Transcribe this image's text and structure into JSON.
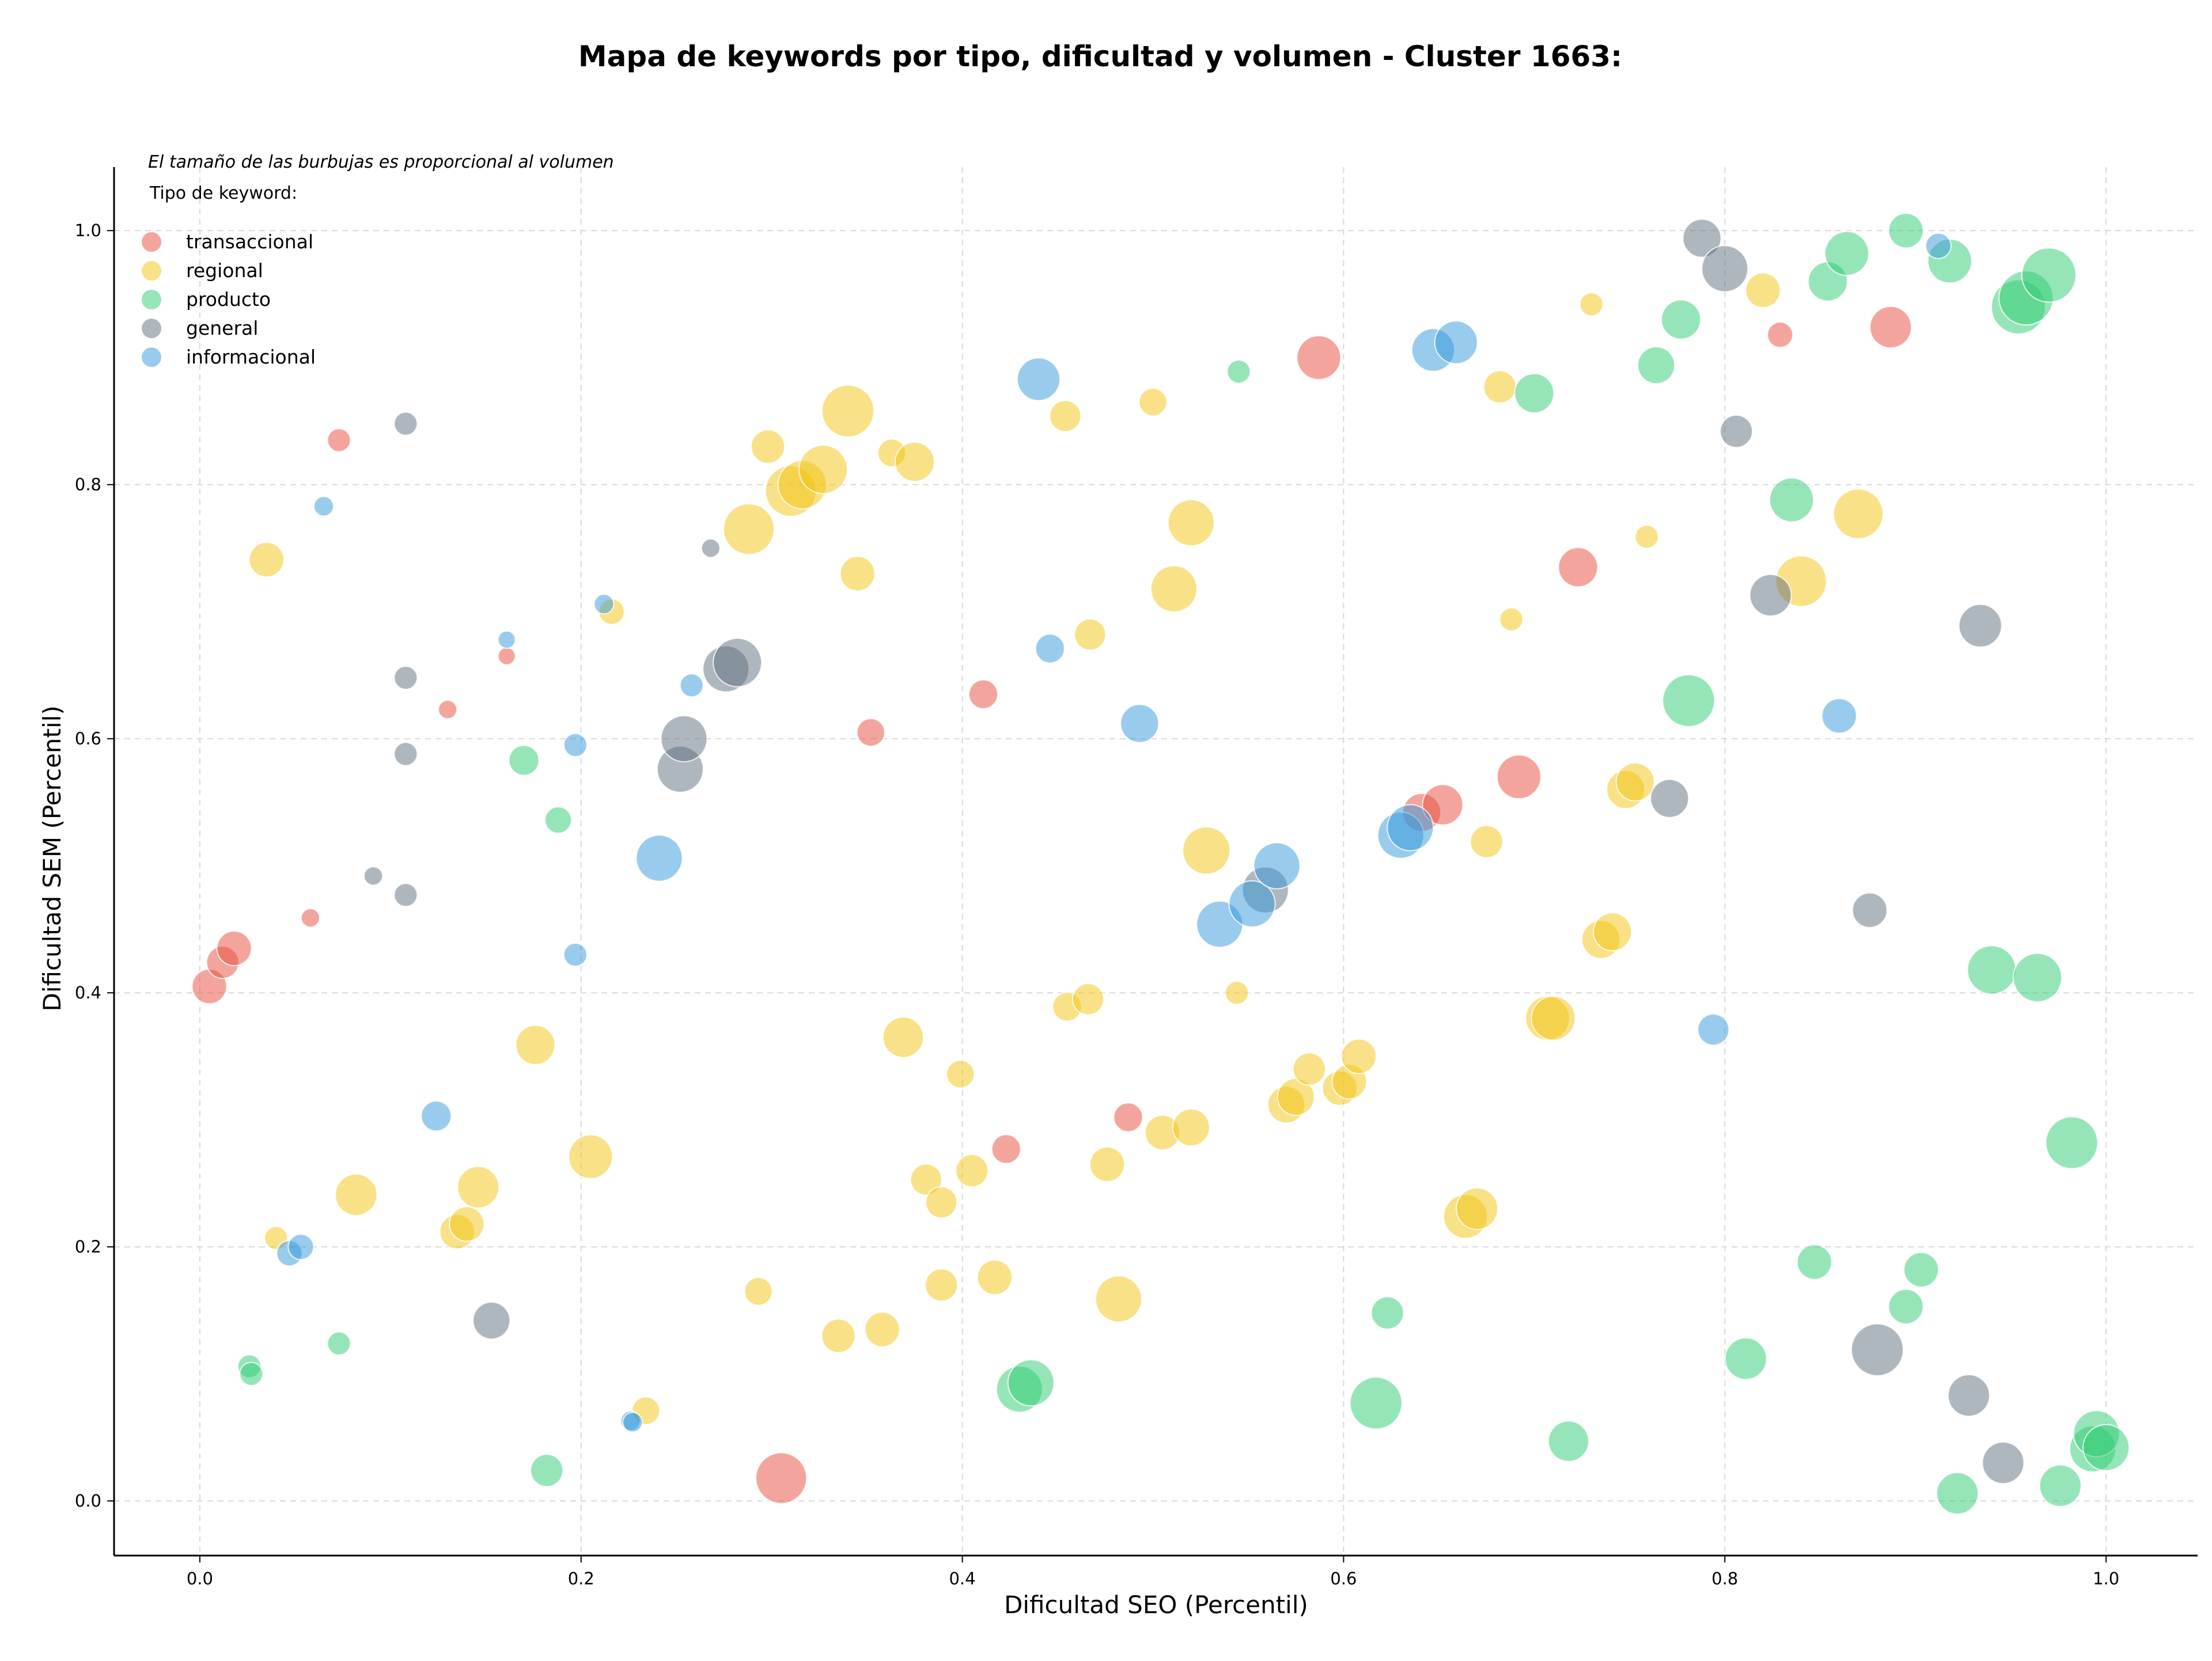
{
  "chart_data": {
    "type": "scatter",
    "title": "Mapa de keywords por tipo, dificultad y volumen - Cluster 1663:",
    "xlabel": "Dificultad SEO (Percentil)",
    "ylabel": "Dificultad SEM (Percentil)",
    "xlim": [
      -0.045,
      1.048
    ],
    "ylim": [
      -0.043,
      1.05
    ],
    "xticks": [
      "0.0",
      "0.2",
      "0.4",
      "0.6",
      "0.8",
      "1.0"
    ],
    "yticks": [
      "0.0",
      "0.2",
      "0.4",
      "0.6",
      "0.8",
      "1.0"
    ],
    "grid": true,
    "note": "El tamaño de las burbujas es proporcional al volumen",
    "legend_title": "Tipo de keyword:",
    "legend_position": "top-left",
    "series": [
      {
        "name": "transaccional",
        "color": "#e74c3c",
        "points": [
          [
            0.005,
            0.405,
            30
          ],
          [
            0.012,
            0.424,
            28
          ],
          [
            0.018,
            0.435,
            30
          ],
          [
            0.058,
            0.459,
            16
          ],
          [
            0.073,
            0.835,
            20
          ],
          [
            0.13,
            0.623,
            16
          ],
          [
            0.161,
            0.665,
            15
          ],
          [
            0.305,
            0.018,
            44
          ],
          [
            0.352,
            0.605,
            24
          ],
          [
            0.411,
            0.635,
            25
          ],
          [
            0.423,
            0.277,
            25
          ],
          [
            0.487,
            0.302,
            25
          ],
          [
            0.587,
            0.9,
            38
          ],
          [
            0.641,
            0.542,
            33
          ],
          [
            0.652,
            0.548,
            35
          ],
          [
            0.692,
            0.57,
            38
          ],
          [
            0.723,
            0.735,
            34
          ],
          [
            0.829,
            0.918,
            22
          ],
          [
            0.887,
            0.924,
            36
          ]
        ]
      },
      {
        "name": "regional",
        "color": "#f1c40f",
        "points": [
          [
            0.035,
            0.741,
            30
          ],
          [
            0.04,
            0.207,
            20
          ],
          [
            0.082,
            0.241,
            36
          ],
          [
            0.135,
            0.212,
            30
          ],
          [
            0.14,
            0.218,
            30
          ],
          [
            0.146,
            0.247,
            36
          ],
          [
            0.176,
            0.359,
            34
          ],
          [
            0.205,
            0.271,
            38
          ],
          [
            0.216,
            0.7,
            22
          ],
          [
            0.234,
            0.071,
            24
          ],
          [
            0.293,
            0.165,
            24
          ],
          [
            0.288,
            0.765,
            44
          ],
          [
            0.298,
            0.83,
            29
          ],
          [
            0.31,
            0.795,
            44
          ],
          [
            0.316,
            0.8,
            42
          ],
          [
            0.327,
            0.812,
            42
          ],
          [
            0.34,
            0.858,
            45
          ],
          [
            0.345,
            0.73,
            30
          ],
          [
            0.335,
            0.13,
            29
          ],
          [
            0.358,
            0.135,
            30
          ],
          [
            0.363,
            0.825,
            24
          ],
          [
            0.375,
            0.818,
            34
          ],
          [
            0.369,
            0.365,
            35
          ],
          [
            0.381,
            0.253,
            27
          ],
          [
            0.389,
            0.235,
            27
          ],
          [
            0.389,
            0.17,
            28
          ],
          [
            0.399,
            0.336,
            24
          ],
          [
            0.405,
            0.26,
            28
          ],
          [
            0.417,
            0.176,
            30
          ],
          [
            0.454,
            0.854,
            27
          ],
          [
            0.455,
            0.389,
            25
          ],
          [
            0.466,
            0.395,
            27
          ],
          [
            0.467,
            0.682,
            27
          ],
          [
            0.476,
            0.265,
            30
          ],
          [
            0.482,
            0.159,
            40
          ],
          [
            0.5,
            0.865,
            24
          ],
          [
            0.505,
            0.29,
            30
          ],
          [
            0.511,
            0.718,
            40
          ],
          [
            0.52,
            0.77,
            40
          ],
          [
            0.52,
            0.294,
            32
          ],
          [
            0.528,
            0.512,
            41
          ],
          [
            0.544,
            0.4,
            20
          ],
          [
            0.57,
            0.312,
            32
          ],
          [
            0.575,
            0.318,
            32
          ],
          [
            0.582,
            0.34,
            28
          ],
          [
            0.598,
            0.325,
            30
          ],
          [
            0.603,
            0.33,
            30
          ],
          [
            0.608,
            0.35,
            30
          ],
          [
            0.664,
            0.224,
            38
          ],
          [
            0.67,
            0.23,
            36
          ],
          [
            0.675,
            0.519,
            28
          ],
          [
            0.682,
            0.877,
            28
          ],
          [
            0.688,
            0.694,
            20
          ],
          [
            0.707,
            0.38,
            38
          ],
          [
            0.71,
            0.38,
            38
          ],
          [
            0.73,
            0.942,
            20
          ],
          [
            0.735,
            0.442,
            33
          ],
          [
            0.741,
            0.448,
            33
          ],
          [
            0.748,
            0.56,
            33
          ],
          [
            0.753,
            0.566,
            33
          ],
          [
            0.759,
            0.759,
            20
          ],
          [
            0.82,
            0.953,
            30
          ],
          [
            0.84,
            0.724,
            44
          ],
          [
            0.87,
            0.777,
            43
          ]
        ]
      },
      {
        "name": "producto",
        "color": "#2ecc71",
        "points": [
          [
            0.026,
            0.106,
            20
          ],
          [
            0.027,
            0.1,
            20
          ],
          [
            0.073,
            0.124,
            20
          ],
          [
            0.17,
            0.583,
            26
          ],
          [
            0.188,
            0.536,
            23
          ],
          [
            0.182,
            0.024,
            28
          ],
          [
            0.43,
            0.088,
            40
          ],
          [
            0.436,
            0.093,
            40
          ],
          [
            0.545,
            0.889,
            20
          ],
          [
            0.617,
            0.077,
            45
          ],
          [
            0.623,
            0.148,
            28
          ],
          [
            0.7,
            0.872,
            34
          ],
          [
            0.718,
            0.047,
            35
          ],
          [
            0.764,
            0.894,
            32
          ],
          [
            0.777,
            0.93,
            34
          ],
          [
            0.781,
            0.63,
            45
          ],
          [
            0.811,
            0.112,
            36
          ],
          [
            0.835,
            0.788,
            38
          ],
          [
            0.847,
            0.188,
            30
          ],
          [
            0.854,
            0.96,
            34
          ],
          [
            0.864,
            0.982,
            38
          ],
          [
            0.895,
            1.0,
            30
          ],
          [
            0.903,
            0.182,
            30
          ],
          [
            0.895,
            0.153,
            30
          ],
          [
            0.918,
            0.976,
            38
          ],
          [
            0.922,
            0.006,
            36
          ],
          [
            0.94,
            0.418,
            42
          ],
          [
            0.954,
            0.94,
            47
          ],
          [
            0.958,
            0.947,
            47
          ],
          [
            0.964,
            0.412,
            42
          ],
          [
            0.97,
            0.965,
            47
          ],
          [
            0.976,
            0.012,
            36
          ],
          [
            0.982,
            0.282,
            45
          ],
          [
            0.993,
            0.041,
            40
          ],
          [
            0.995,
            0.053,
            40
          ],
          [
            1.0,
            0.042,
            40
          ]
        ]
      },
      {
        "name": "general",
        "color": "#5d6d7e",
        "points": [
          [
            0.108,
            0.848,
            20
          ],
          [
            0.108,
            0.648,
            20
          ],
          [
            0.108,
            0.588,
            20
          ],
          [
            0.108,
            0.477,
            20
          ],
          [
            0.091,
            0.492,
            16
          ],
          [
            0.153,
            0.142,
            32
          ],
          [
            0.268,
            0.75,
            16
          ],
          [
            0.252,
            0.576,
            40
          ],
          [
            0.254,
            0.6,
            40
          ],
          [
            0.276,
            0.655,
            40
          ],
          [
            0.282,
            0.66,
            42
          ],
          [
            0.559,
            0.481,
            40
          ],
          [
            0.771,
            0.553,
            33
          ],
          [
            0.788,
            0.994,
            33
          ],
          [
            0.8,
            0.97,
            40
          ],
          [
            0.806,
            0.842,
            28
          ],
          [
            0.824,
            0.713,
            36
          ],
          [
            0.876,
            0.465,
            30
          ],
          [
            0.88,
            0.119,
            45
          ],
          [
            0.928,
            0.083,
            36
          ],
          [
            0.934,
            0.689,
            37
          ],
          [
            0.946,
            0.03,
            36
          ]
        ]
      },
      {
        "name": "informacional",
        "color": "#3498db",
        "points": [
          [
            0.047,
            0.195,
            22
          ],
          [
            0.053,
            0.2,
            22
          ],
          [
            0.065,
            0.783,
            17
          ],
          [
            0.124,
            0.303,
            26
          ],
          [
            0.161,
            0.678,
            15
          ],
          [
            0.197,
            0.43,
            20
          ],
          [
            0.197,
            0.595,
            20
          ],
          [
            0.212,
            0.706,
            17
          ],
          [
            0.226,
            0.063,
            17
          ],
          [
            0.227,
            0.062,
            17
          ],
          [
            0.241,
            0.506,
            40
          ],
          [
            0.258,
            0.642,
            20
          ],
          [
            0.44,
            0.883,
            37
          ],
          [
            0.446,
            0.671,
            25
          ],
          [
            0.493,
            0.612,
            33
          ],
          [
            0.535,
            0.454,
            40
          ],
          [
            0.552,
            0.47,
            40
          ],
          [
            0.565,
            0.5,
            40
          ],
          [
            0.63,
            0.524,
            40
          ],
          [
            0.635,
            0.53,
            40
          ],
          [
            0.647,
            0.906,
            37
          ],
          [
            0.659,
            0.912,
            37
          ],
          [
            0.794,
            0.371,
            27
          ],
          [
            0.86,
            0.618,
            30
          ],
          [
            0.912,
            0.988,
            22
          ]
        ]
      }
    ]
  }
}
